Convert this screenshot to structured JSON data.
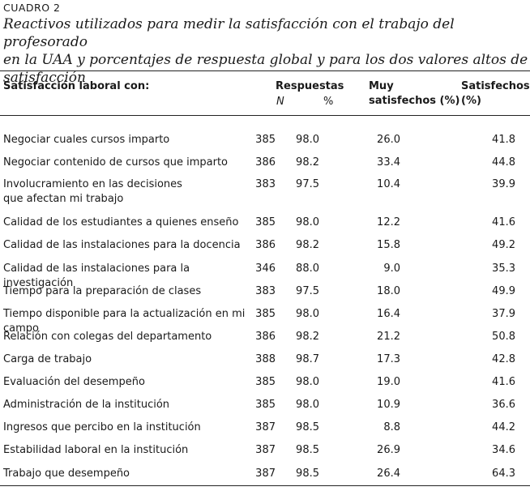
{
  "label": "CUADRO 2",
  "caption": {
    "line1": "Reactivos utilizados para medir la satisfacción con el trabajo del profesorado",
    "line2": "en la UAA y porcentajes de respuesta global y para los dos valores altos de satisfacción"
  },
  "headers": {
    "item": "Satisfacción laboral con:",
    "respuestas": "Respuestas",
    "n": "N",
    "pct": "%",
    "muy_line1": "Muy",
    "muy_line2": "satisfechos (%)",
    "sat_line1": "Satisfechos",
    "sat_line2": "(%)"
  },
  "rows": [
    {
      "item": "Negociar cuales cursos imparto",
      "n": "385",
      "pct": "98.0",
      "muy": "26.0",
      "sat": "41.8"
    },
    {
      "item": "Negociar contenido de cursos que imparto",
      "n": "386",
      "pct": "98.2",
      "muy": "33.4",
      "sat": "44.8"
    },
    {
      "item": "Involucramiento en las decisiones",
      "item2": "que afectan mi trabajo",
      "n": "383",
      "pct": "97.5",
      "muy": "10.4",
      "sat": "39.9"
    },
    {
      "item": "Calidad de los estudiantes a quienes enseño",
      "n": "385",
      "pct": "98.0",
      "muy": "12.2",
      "sat": "41.6"
    },
    {
      "item": "Calidad de las instalaciones para la docencia",
      "n": "386",
      "pct": "98.2",
      "muy": "15.8",
      "sat": "49.2"
    },
    {
      "item": "Calidad de las instalaciones para la investigación",
      "n": "346",
      "pct": "88.0",
      "muy": "9.0",
      "sat": "35.3"
    },
    {
      "item": "Tiempo para la preparación de clases",
      "n": "383",
      "pct": "97.5",
      "muy": "18.0",
      "sat": "49.9"
    },
    {
      "item": "Tiempo disponible para la actualización en mi campo",
      "n": "385",
      "pct": "98.0",
      "muy": "16.4",
      "sat": "37.9"
    },
    {
      "item": "Relación con colegas del departamento",
      "n": "386",
      "pct": "98.2",
      "muy": "21.2",
      "sat": "50.8"
    },
    {
      "item": "Carga de trabajo",
      "n": "388",
      "pct": "98.7",
      "muy": "17.3",
      "sat": "42.8"
    },
    {
      "item": "Evaluación del desempeño",
      "n": "385",
      "pct": "98.0",
      "muy": "19.0",
      "sat": "41.6"
    },
    {
      "item": "Administración de la institución",
      "n": "385",
      "pct": "98.0",
      "muy": "10.9",
      "sat": "36.6"
    },
    {
      "item": "Ingresos que percibo en la institución",
      "n": "387",
      "pct": "98.5",
      "muy": "8.8",
      "sat": "44.2"
    },
    {
      "item": "Estabilidad laboral en la institución",
      "n": "387",
      "pct": "98.5",
      "muy": "26.9",
      "sat": "34.6"
    },
    {
      "item": "Trabajo que desempeño",
      "n": "387",
      "pct": "98.5",
      "muy": "26.4",
      "sat": "64.3"
    }
  ]
}
